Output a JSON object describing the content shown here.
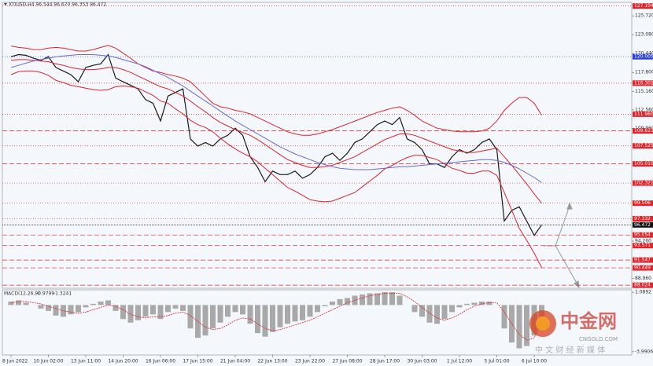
{
  "chart_data": [
    {
      "type": "line",
      "title": "XTIUSD,H4  96.544 96.670 96.353 96.472",
      "categories": [
        "8 Jun 2022",
        null,
        null,
        null,
        null,
        "10 Jun 02:00",
        null,
        null,
        null,
        null,
        "13 Jun 11:00",
        null,
        null,
        null,
        null,
        "14 Jun 20:00",
        null,
        null,
        null,
        null,
        "16 Jun 06:00",
        null,
        null,
        null,
        null,
        "17 Jun 15:00",
        null,
        null,
        null,
        null,
        "21 Jun 04:00",
        null,
        null,
        null,
        null,
        "22 Jun 13:00",
        null,
        null,
        null,
        null,
        "23 Jun 22:00",
        null,
        null,
        null,
        null,
        "27 Jun 08:00",
        null,
        null,
        null,
        null,
        "28 Jun 17:00",
        null,
        null,
        null,
        null,
        "30 Jun 03:00",
        null,
        null,
        null,
        null,
        "1 Jul 12:00",
        null,
        null,
        null,
        null,
        "5 Jul 01:00",
        null,
        null,
        null,
        null,
        "6 Jul 10:00",
        null
      ],
      "series": [
        {
          "color": "#1a1a1a",
          "width": 1.2,
          "values": [
            120.0,
            120.3,
            120.2,
            119.8,
            119.5,
            120.0,
            118.5,
            118.0,
            117.5,
            116.5,
            118.5,
            118.8,
            119.0,
            120.3,
            117.0,
            116.5,
            116.0,
            115.5,
            114.0,
            113.5,
            111.0,
            114.5,
            115.0,
            115.5,
            108.5,
            107.5,
            108.0,
            107.5,
            108.5,
            109.0,
            110.0,
            109.0,
            106.0,
            104.5,
            102.5,
            104.0,
            103.5,
            103.5,
            104.0,
            103.0,
            103.5,
            104.5,
            106.0,
            106.5,
            105.5,
            106.5,
            108.0,
            108.5,
            109.5,
            110.5,
            111.0,
            110.5,
            111.5,
            108.5,
            108.0,
            107.0,
            105.0,
            105.0,
            104.5,
            106.0,
            107.0,
            106.5,
            107.0,
            108.0,
            108.5,
            107.0,
            97.0,
            98.5,
            99.0,
            97.0,
            95.0,
            96.472
          ]
        },
        {
          "color": "#e0242a",
          "width": 1,
          "values": [
            121.5,
            121.3,
            121.2,
            121.0,
            121.0,
            121.2,
            121.3,
            121.2,
            121.0,
            120.8,
            120.8,
            121.0,
            121.3,
            121.6,
            121.2,
            120.5,
            119.8,
            119.0,
            118.5,
            118.0,
            117.8,
            117.5,
            117.3,
            117.0,
            116.5,
            115.5,
            114.5,
            113.5,
            113.0,
            112.8,
            112.5,
            112.3,
            112.0,
            111.5,
            111.0,
            110.5,
            110.0,
            109.5,
            109.2,
            109.0,
            109.0,
            109.2,
            109.5,
            109.8,
            110.2,
            110.6,
            111.0,
            111.4,
            111.8,
            112.2,
            112.5,
            112.8,
            113.0,
            112.5,
            111.8,
            111.0,
            110.5,
            110.0,
            109.8,
            109.6,
            109.5,
            109.5,
            109.5,
            109.6,
            110.0,
            111.0,
            112.5,
            113.5,
            114.3,
            114.3,
            113.5,
            111.8
          ]
        },
        {
          "color": "#e0242a",
          "width": 1,
          "values": [
            119.5,
            119.6,
            119.6,
            119.5,
            119.4,
            119.3,
            119.0,
            118.8,
            118.5,
            118.3,
            118.2,
            118.2,
            118.3,
            118.5,
            118.5,
            118.2,
            117.8,
            117.3,
            116.8,
            116.3,
            115.8,
            115.5,
            115.0,
            114.5,
            113.8,
            113.0,
            112.3,
            111.5,
            110.8,
            110.3,
            109.8,
            109.4,
            109.0,
            108.4,
            107.7,
            107.0,
            106.3,
            105.6,
            105.2,
            104.8,
            104.5,
            104.5,
            104.6,
            104.8,
            105.2,
            105.6,
            106.0,
            106.6,
            107.2,
            107.8,
            108.4,
            108.8,
            109.2,
            109.2,
            109.0,
            108.6,
            108.2,
            107.8,
            107.4,
            107.0,
            106.8,
            106.6,
            106.6,
            106.8,
            107.0,
            107.2,
            106.0,
            104.8,
            103.5,
            102.2,
            100.8,
            99.5
          ]
        },
        {
          "color": "#e0242a",
          "width": 1,
          "values": [
            117.5,
            117.9,
            118.0,
            118.0,
            117.8,
            117.4,
            116.7,
            116.4,
            116.0,
            115.8,
            115.6,
            115.4,
            115.3,
            115.4,
            115.8,
            115.9,
            115.8,
            115.6,
            115.1,
            114.6,
            113.8,
            113.5,
            112.7,
            112.0,
            111.1,
            110.5,
            110.1,
            109.5,
            108.6,
            107.8,
            107.1,
            106.5,
            106.0,
            105.3,
            104.4,
            103.5,
            102.6,
            101.7,
            101.2,
            100.6,
            100.0,
            99.8,
            99.7,
            99.8,
            100.2,
            100.6,
            101.0,
            101.8,
            102.6,
            103.4,
            104.3,
            104.8,
            105.4,
            105.9,
            106.2,
            106.2,
            105.9,
            105.6,
            105.0,
            104.4,
            104.1,
            103.7,
            103.7,
            104.0,
            104.0,
            103.4,
            101.0,
            98.5,
            96.0,
            94.3,
            92.5,
            90.5
          ]
        },
        {
          "color": "#6b6bd6",
          "width": 1,
          "values": [
            118.5,
            118.8,
            119.1,
            119.4,
            119.6,
            119.8,
            120.0,
            120.1,
            120.2,
            120.3,
            120.3,
            120.3,
            120.2,
            120.1,
            119.9,
            119.6,
            119.3,
            119.0,
            118.6,
            118.1,
            117.6,
            117.1,
            116.5,
            115.9,
            115.2,
            114.5,
            113.8,
            113.1,
            112.4,
            111.7,
            111.0,
            110.4,
            109.8,
            109.2,
            108.6,
            108.0,
            107.4,
            106.9,
            106.4,
            106.0,
            105.6,
            105.2,
            104.9,
            104.6,
            104.4,
            104.3,
            104.2,
            104.2,
            104.2,
            104.3,
            104.4,
            104.5,
            104.6,
            104.6,
            104.7,
            104.8,
            104.9,
            105.0,
            105.1,
            105.2,
            105.3,
            105.4,
            105.5,
            105.6,
            105.6,
            105.5,
            105.2,
            104.8,
            104.3,
            103.7,
            103.1,
            102.4
          ]
        }
      ],
      "ylim": [
        87.6,
        127.5
      ],
      "yticks": [
        {
          "value": 125.72,
          "label": "125.720"
        },
        {
          "value": 123.08,
          "label": "123.080"
        },
        {
          "value": 120.44,
          "label": "120.440"
        },
        {
          "value": 117.8,
          "label": "117.800"
        },
        {
          "value": 115.16,
          "label": "115.160"
        },
        {
          "value": 112.56,
          "label": "112.560"
        },
        {
          "value": 109.96,
          "label": "109.960"
        },
        {
          "value": 94.2,
          "label": "94.200"
        },
        {
          "value": 88.96,
          "label": "88.960"
        }
      ],
      "levels": [
        {
          "value": 127.104,
          "label": "127.104",
          "color": "#e0242a",
          "dash": "1 2"
        },
        {
          "value": 120.005,
          "label": "120.005",
          "color": "#2a3fd8",
          "dash": "1 2"
        },
        {
          "value": 116.301,
          "label": "116.301",
          "color": "#e0242a",
          "dash": "1 2"
        },
        {
          "value": 111.96,
          "label": "111.960",
          "color": "#e0242a",
          "dash": "1 2"
        },
        {
          "value": 109.623,
          "label": "109.623",
          "color": "#e0242a",
          "dash": "6 3"
        },
        {
          "value": 107.525,
          "label": "107.525",
          "color": "#e0242a",
          "dash": "1 2"
        },
        {
          "value": 105.01,
          "label": "105.010",
          "color": "#e0242a",
          "dash": "6 3"
        },
        {
          "value": 102.321,
          "label": "102.321",
          "color": "#e0242a",
          "dash": "1 2"
        },
        {
          "value": 99.506,
          "label": "99.506",
          "color": "#e0242a",
          "dash": "1 2"
        },
        {
          "value": 97.332,
          "label": "97.332",
          "color": "#e0242a",
          "dash": "1 2"
        },
        {
          "value": 96.472,
          "label": "96.472",
          "color": "#111111",
          "dash": "1 1"
        },
        {
          "value": 95.054,
          "label": "95.054",
          "color": "#e0242a",
          "dash": "6 3"
        },
        {
          "value": 93.571,
          "label": "93.571",
          "color": "#e0242a",
          "dash": "6 3"
        },
        {
          "value": 91.547,
          "label": "91.547",
          "color": "#e0242a",
          "dash": "6 3"
        },
        {
          "value": 90.449,
          "label": "90.449",
          "color": "#e0242a",
          "dash": "6 3"
        },
        {
          "value": 88.024,
          "label": "88.024",
          "color": "#e0242a",
          "dash": "6 3"
        }
      ]
    },
    {
      "type": "bar",
      "title": "MACD(12,26,9)",
      "macd_value": -0.9799,
      "signal_value": -1.3241,
      "color": "#a9a9a9",
      "signal_color": "#e0242a",
      "values": [
        0.3,
        0.4,
        0.2,
        0.0,
        -0.3,
        -0.5,
        -0.9,
        -1.0,
        -0.8,
        -0.6,
        -0.2,
        0.1,
        0.3,
        0.4,
        -0.5,
        -1.2,
        -1.5,
        -1.3,
        -1.0,
        -0.8,
        -1.2,
        -0.6,
        -0.3,
        -0.5,
        -2.0,
        -2.8,
        -2.6,
        -2.0,
        -1.5,
        -1.0,
        -0.6,
        -0.8,
        -1.6,
        -2.4,
        -2.7,
        -2.3,
        -1.9,
        -1.6,
        -1.4,
        -1.3,
        -1.0,
        -0.6,
        -0.1,
        0.3,
        0.5,
        0.6,
        0.8,
        0.9,
        1.0,
        1.0,
        1.1,
        1.1,
        0.8,
        0.0,
        -0.6,
        -1.0,
        -1.5,
        -1.6,
        -1.2,
        -0.6,
        -0.2,
        0.1,
        0.2,
        0.3,
        0.3,
        0.0,
        -2.0,
        -3.2,
        -3.7,
        -3.5,
        -2.6,
        -0.98
      ],
      "signal": [
        0.2,
        0.3,
        0.3,
        0.2,
        0.1,
        -0.1,
        -0.3,
        -0.5,
        -0.6,
        -0.7,
        -0.6,
        -0.4,
        -0.2,
        0.0,
        -0.1,
        -0.4,
        -0.8,
        -1.0,
        -1.1,
        -1.0,
        -1.0,
        -0.9,
        -0.7,
        -0.6,
        -0.9,
        -1.4,
        -1.9,
        -2.1,
        -2.0,
        -1.7,
        -1.3,
        -1.1,
        -1.2,
        -1.6,
        -2.0,
        -2.2,
        -2.1,
        -1.9,
        -1.7,
        -1.5,
        -1.3,
        -1.0,
        -0.7,
        -0.4,
        -0.1,
        0.2,
        0.4,
        0.6,
        0.8,
        0.9,
        1.0,
        1.0,
        1.0,
        0.7,
        0.3,
        -0.2,
        -0.7,
        -1.1,
        -1.3,
        -1.1,
        -0.8,
        -0.4,
        -0.1,
        0.1,
        0.2,
        0.2,
        -0.6,
        -1.6,
        -2.5,
        -3.0,
        -2.8,
        -1.32
      ],
      "ylim": [
        -4.2,
        1.3
      ],
      "yticks": [
        1.0892,
        -3.9906
      ]
    }
  ],
  "watermark": {
    "brand": "中金网",
    "site": "CNGOLD.COM",
    "slogan": "中 文 财 经 新 媒 体"
  }
}
